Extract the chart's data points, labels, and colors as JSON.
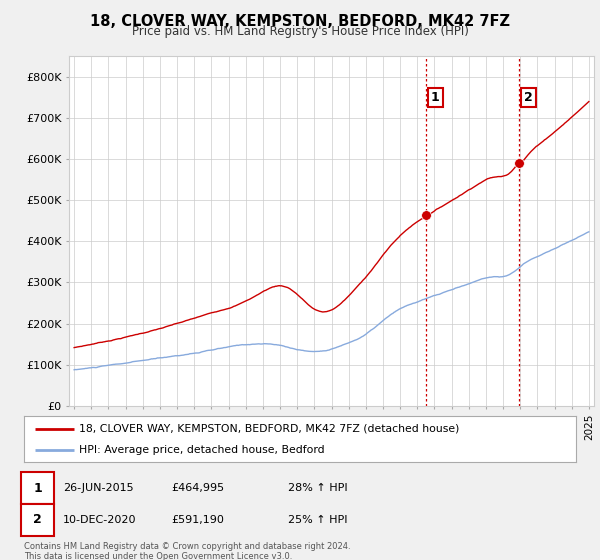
{
  "title": "18, CLOVER WAY, KEMPSTON, BEDFORD, MK42 7FZ",
  "subtitle": "Price paid vs. HM Land Registry's House Price Index (HPI)",
  "ylim": [
    0,
    850000
  ],
  "yticks": [
    0,
    100000,
    200000,
    300000,
    400000,
    500000,
    600000,
    700000,
    800000
  ],
  "ytick_labels": [
    "£0",
    "£100K",
    "£200K",
    "£300K",
    "£400K",
    "£500K",
    "£600K",
    "£700K",
    "£800K"
  ],
  "price_color": "#cc0000",
  "hpi_color": "#88aadd",
  "marker1_date": 2015.49,
  "marker1_price": 464995,
  "marker2_date": 2020.94,
  "marker2_price": 591190,
  "vline_color": "#cc0000",
  "legend_label_price": "18, CLOVER WAY, KEMPSTON, BEDFORD, MK42 7FZ (detached house)",
  "legend_label_hpi": "HPI: Average price, detached house, Bedford",
  "annot1_label": "1",
  "annot2_label": "2",
  "table_row1": [
    "1",
    "26-JUN-2015",
    "£464,995",
    "28% ↑ HPI"
  ],
  "table_row2": [
    "2",
    "10-DEC-2020",
    "£591,190",
    "25% ↑ HPI"
  ],
  "footer": "Contains HM Land Registry data © Crown copyright and database right 2024.\nThis data is licensed under the Open Government Licence v3.0.",
  "bg_color": "#f0f0f0",
  "plot_bg_color": "#ffffff"
}
